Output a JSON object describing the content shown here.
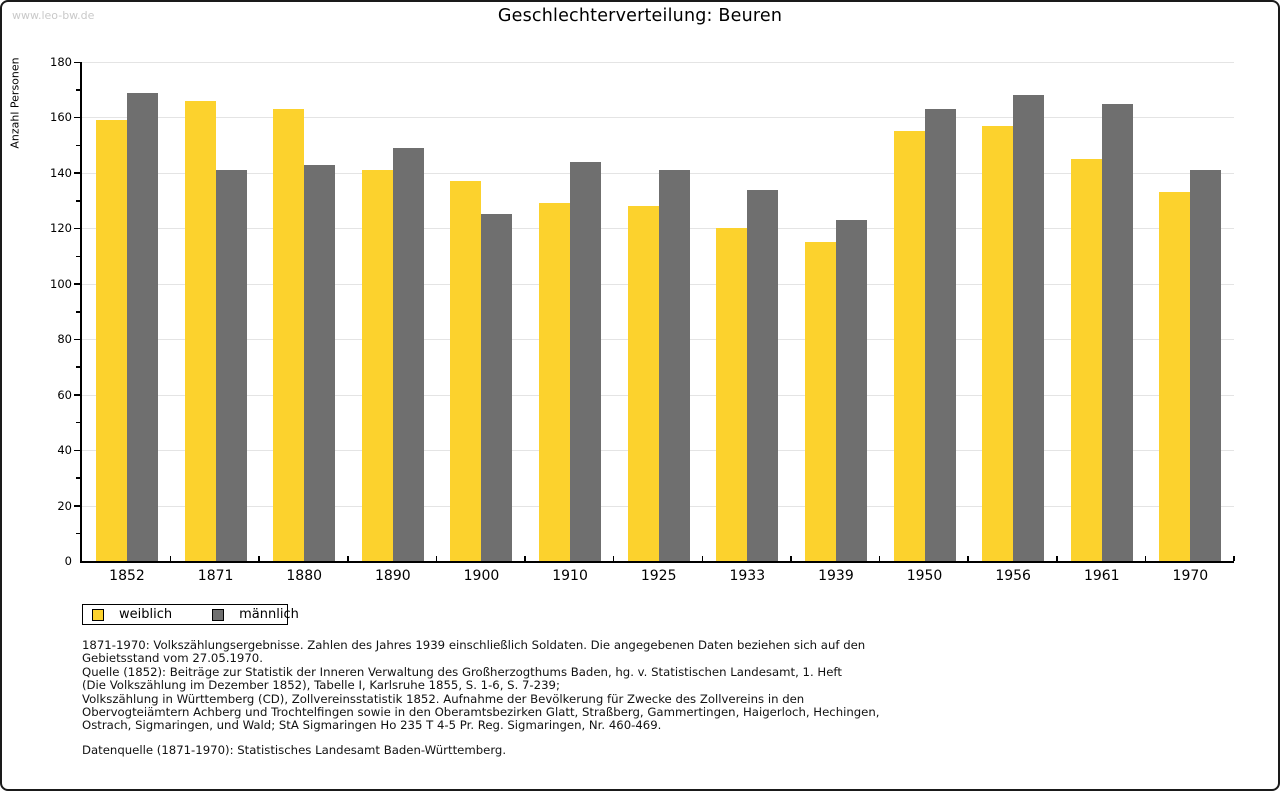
{
  "watermark": "www.leo-bw.de",
  "title": "Geschlechterverteilung: Beuren",
  "chart_data": {
    "type": "bar",
    "title": "Geschlechterverteilung: Beuren",
    "xlabel": "",
    "ylabel": "Anzahl Personen",
    "ylim": [
      0,
      180
    ],
    "ytick_step": 20,
    "yminor_step": 10,
    "grid": true,
    "legend_position": "bottom-left",
    "categories": [
      "1852",
      "1871",
      "1880",
      "1890",
      "1900",
      "1910",
      "1925",
      "1933",
      "1939",
      "1950",
      "1956",
      "1961",
      "1970"
    ],
    "series": [
      {
        "name": "weiblich",
        "color": "#fcd22d",
        "values": [
          159,
          166,
          163,
          141,
          137,
          129,
          128,
          120,
          115,
          155,
          157,
          145,
          133
        ]
      },
      {
        "name": "männlich",
        "color": "#6f6f6f",
        "values": [
          169,
          141,
          143,
          149,
          125,
          144,
          141,
          134,
          123,
          163,
          168,
          165,
          141
        ]
      }
    ]
  },
  "legend": {
    "items": [
      {
        "label": "weiblich",
        "color": "#fcd22d"
      },
      {
        "label": "männlich",
        "color": "#6f6f6f"
      }
    ]
  },
  "footnotes": {
    "lines": [
      "1871-1970: Volkszählungsergebnisse. Zahlen des Jahres 1939 einschließlich Soldaten. Die angegebenen Daten beziehen sich auf den",
      "Gebietsstand vom 27.05.1970.",
      "Quelle (1852): Beiträge zur Statistik der Inneren Verwaltung des Großherzogthums Baden, hg. v. Statistischen Landesamt, 1. Heft",
      "(Die Volkszählung im Dezember 1852), Tabelle I, Karlsruhe 1855, S. 1-6, S. 7-239;",
      "Volkszählung in Württemberg (CD), Zollvereinsstatistik 1852. Aufnahme der Bevölkerung für Zwecke des Zollvereins in den",
      "Obervogteiämtern Achberg und Trochtelfingen sowie in den Oberamtsbezirken Glatt, Straßberg, Gammertingen, Haigerloch, Hechingen,",
      "Ostrach, Sigmaringen, und Wald; StA Sigmaringen Ho 235 T 4-5 Pr. Reg. Sigmaringen, Nr. 460-469."
    ]
  },
  "footer": {
    "datasource": "Datenquelle (1871-1970): Statistisches Landesamt Baden-Württemberg."
  }
}
